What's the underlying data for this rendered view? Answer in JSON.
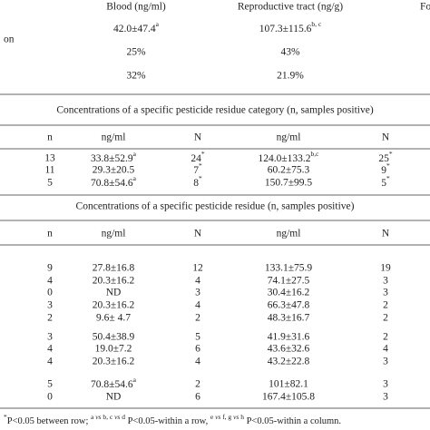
{
  "top": {
    "header": [
      "Blood (ng/ml)",
      "Reproductive tract (ng/g)",
      "Fo"
    ],
    "rows": [
      {
        "label": "on",
        "cells": [
          {
            "text": "42.0±47.4",
            "sup": "a"
          },
          {
            "text": "107.3±115.6",
            "sup": "b, c"
          }
        ]
      },
      {
        "cells": [
          "25%",
          "43%"
        ]
      },
      {
        "cells": [
          "32%",
          "21.9%"
        ]
      }
    ]
  },
  "section1": {
    "title": "Concentrations of a specific pesticide residue category (n, samples positive)",
    "header": [
      "n",
      "ng/ml",
      "N",
      "ng/ml",
      "N"
    ],
    "rows": [
      [
        "13",
        {
          "text": "33.8±52.9",
          "sup": "a"
        },
        {
          "text": "24",
          "sup": "*"
        },
        {
          "text": "124.0±133.2",
          "sup": "b,c"
        },
        {
          "text": "25",
          "sup": "*"
        }
      ],
      [
        "11",
        "29.3±20.5",
        {
          "text": "7",
          "sup": "*"
        },
        "60.2±75.3",
        {
          "text": "9",
          "sup": "*"
        }
      ],
      [
        "5",
        {
          "text": "70.8±54.6",
          "sup": "a"
        },
        {
          "text": "8",
          "sup": "*"
        },
        "150.7±99.5",
        {
          "text": "5",
          "sup": "*"
        }
      ]
    ]
  },
  "section2": {
    "title": "Concentrations of a specific pesticide residue (n, samples positive)",
    "header": [
      "n",
      "ng/ml",
      "N",
      "ng/ml",
      "N"
    ],
    "rows": [
      [
        "9",
        "27.8±16.8",
        "12",
        "133.1±75.9",
        "19"
      ],
      [
        "4",
        "20.3±16.2",
        "4",
        "74.1±27.5",
        "3"
      ],
      [
        "0",
        "ND",
        "3",
        "30.4±16.2",
        "3"
      ],
      [
        "3",
        "20.3±16.2",
        "4",
        "66.3±47.8",
        "2"
      ],
      [
        "2",
        "9.6± 4.7",
        "2",
        "48.3±16.7",
        "2"
      ],
      [
        "3",
        "50.4±38.9",
        "5",
        "41.9±31.6",
        "2"
      ],
      [
        "4",
        "19.0±7.2",
        "6",
        "43.6±32.6",
        "4"
      ],
      [
        "4",
        "20.3±16.2",
        "4",
        "43.2±22.8",
        "3"
      ],
      [
        "5",
        {
          "text": "70.8±54.6",
          "sup": "a"
        },
        "2",
        "101±82.1",
        "3"
      ],
      [
        "0",
        "ND",
        "6",
        "167.4±105.8",
        "3"
      ]
    ]
  },
  "footnote": [
    "*",
    "P<0.05 between row; ",
    "a",
    " vs ",
    "b, c",
    " vs ",
    "d",
    " P<0.05-within a row, ",
    "e",
    " vs ",
    "f, g",
    " vs ",
    "h",
    " P<0.05-within a column."
  ]
}
